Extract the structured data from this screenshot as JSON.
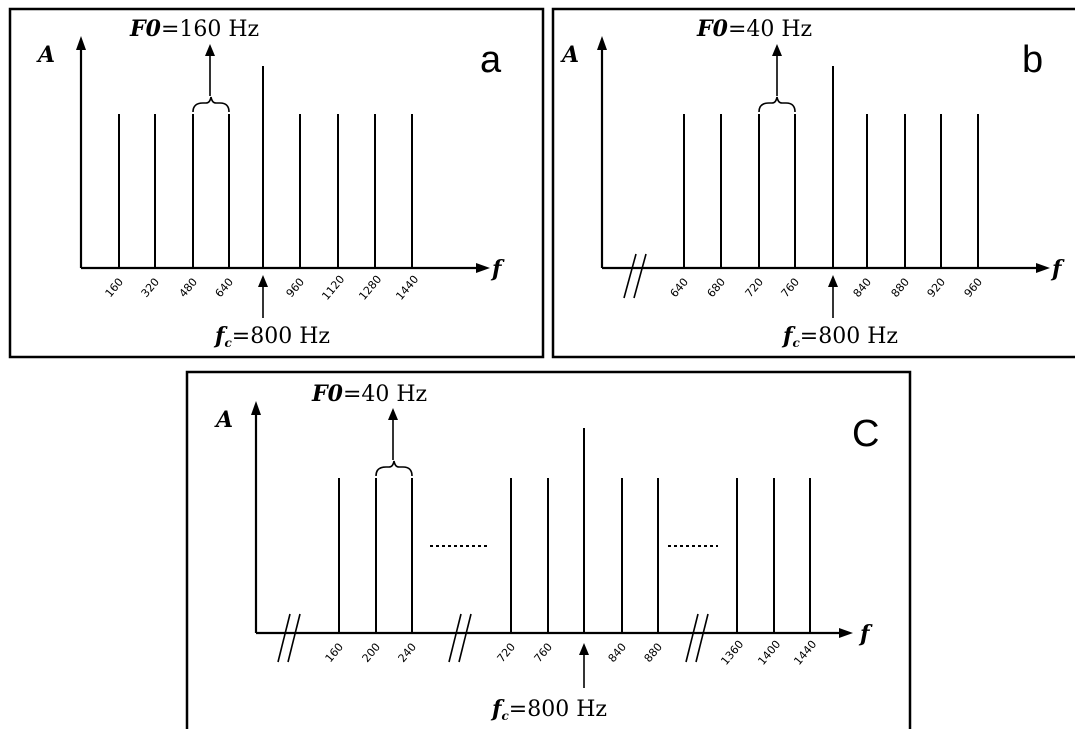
{
  "amplitude_label": "A",
  "frequency_label": "f",
  "fc_label": "f",
  "fc_sub": "c",
  "fc_value": "=800 Hz",
  "f0_prefix": "F0",
  "panels": [
    {
      "letter": "a",
      "f0_value": "=160 Hz",
      "ticks": [
        "160",
        "320",
        "480",
        "640",
        "960",
        "1120",
        "1280",
        "1440"
      ],
      "lines": [
        160,
        320,
        480,
        640,
        960,
        1120,
        1280,
        1440
      ]
    },
    {
      "letter": "b",
      "f0_value": "=40 Hz",
      "ticks": [
        "640",
        "680",
        "720",
        "760",
        "840",
        "880",
        "920",
        "960"
      ],
      "lines": [
        640,
        680,
        720,
        760,
        840,
        880,
        920,
        960
      ]
    },
    {
      "letter": "c",
      "f0_value": "=40 Hz",
      "ticks": [
        "160",
        "200",
        "240",
        "720",
        "760",
        "840",
        "880",
        "1360",
        "1400",
        "1440"
      ],
      "lines": [
        160,
        200,
        240,
        720,
        760,
        840,
        880,
        1360,
        1400,
        1440
      ],
      "ellipsis": "......"
    }
  ]
}
